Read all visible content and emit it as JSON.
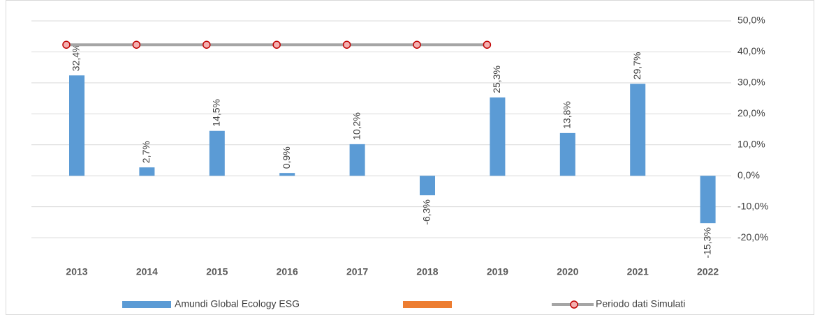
{
  "chart_data": {
    "type": "bar",
    "categories": [
      "2013",
      "2014",
      "2015",
      "2016",
      "2017",
      "2018",
      "2019",
      "2020",
      "2021",
      "2022"
    ],
    "series": [
      {
        "name": "Amundi Global Ecology ESG",
        "color": "#5b9bd5",
        "values": [
          32.4,
          2.7,
          14.5,
          0.9,
          10.2,
          -6.3,
          25.3,
          13.8,
          29.7,
          -15.3
        ],
        "value_labels": [
          "32,4%",
          "2,7%",
          "14,5%",
          "0,9%",
          "10,2%",
          "-6,3%",
          "25,3%",
          "13,8%",
          "29,7%",
          "-15,3%"
        ]
      },
      {
        "color": "#ed7d31",
        "values": [
          null,
          null,
          null,
          null,
          null,
          null,
          null,
          null,
          null,
          null
        ]
      },
      {
        "name": "Periodo dati Simulati",
        "type": "line",
        "color": "#a5a5a5",
        "marker_color": "#c00000",
        "values": [
          42.3,
          42.3,
          42.3,
          42.3,
          42.3,
          42.3,
          42.3,
          null,
          null,
          null
        ]
      }
    ],
    "ylim": [
      -30,
      50
    ],
    "yticks": [
      {
        "value": 50,
        "label": "50,0%"
      },
      {
        "value": 40,
        "label": "40,0%"
      },
      {
        "value": 30,
        "label": "30,0%"
      },
      {
        "value": 20,
        "label": "20,0%"
      },
      {
        "value": 10,
        "label": "10,0%"
      },
      {
        "value": 0,
        "label": "0,0%"
      },
      {
        "value": -10,
        "label": "-10,0%"
      },
      {
        "value": -20,
        "label": "-20,0%"
      }
    ],
    "grid": true,
    "y_axis_side": "right",
    "legend": "bottom"
  }
}
